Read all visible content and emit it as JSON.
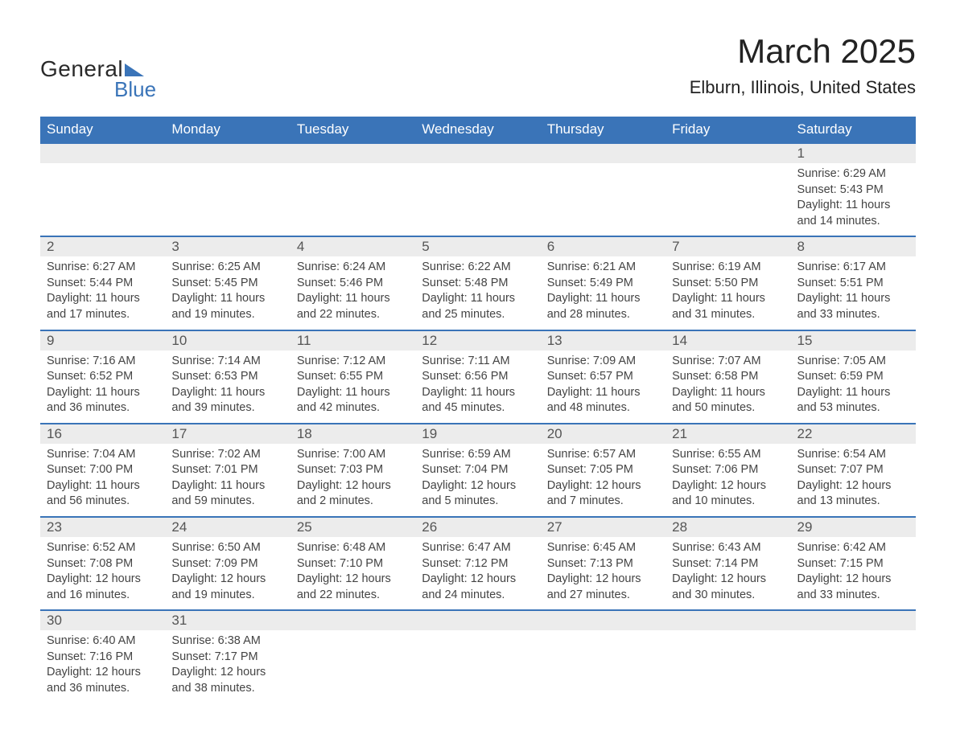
{
  "logo": {
    "text_general": "General",
    "text_blue": "Blue",
    "triangle_color": "#3a74b8"
  },
  "title": "March 2025",
  "location": "Elburn, Illinois, United States",
  "colors": {
    "header_bg": "#3a74b8",
    "header_text": "#ffffff",
    "daynum_bg": "#ececec",
    "border": "#3a74b8",
    "body_text": "#444444"
  },
  "weekdays": [
    "Sunday",
    "Monday",
    "Tuesday",
    "Wednesday",
    "Thursday",
    "Friday",
    "Saturday"
  ],
  "weeks": [
    [
      {
        "empty": true
      },
      {
        "empty": true
      },
      {
        "empty": true
      },
      {
        "empty": true
      },
      {
        "empty": true
      },
      {
        "empty": true
      },
      {
        "day": "1",
        "sunrise": "Sunrise: 6:29 AM",
        "sunset": "Sunset: 5:43 PM",
        "daylight1": "Daylight: 11 hours",
        "daylight2": "and 14 minutes."
      }
    ],
    [
      {
        "day": "2",
        "sunrise": "Sunrise: 6:27 AM",
        "sunset": "Sunset: 5:44 PM",
        "daylight1": "Daylight: 11 hours",
        "daylight2": "and 17 minutes."
      },
      {
        "day": "3",
        "sunrise": "Sunrise: 6:25 AM",
        "sunset": "Sunset: 5:45 PM",
        "daylight1": "Daylight: 11 hours",
        "daylight2": "and 19 minutes."
      },
      {
        "day": "4",
        "sunrise": "Sunrise: 6:24 AM",
        "sunset": "Sunset: 5:46 PM",
        "daylight1": "Daylight: 11 hours",
        "daylight2": "and 22 minutes."
      },
      {
        "day": "5",
        "sunrise": "Sunrise: 6:22 AM",
        "sunset": "Sunset: 5:48 PM",
        "daylight1": "Daylight: 11 hours",
        "daylight2": "and 25 minutes."
      },
      {
        "day": "6",
        "sunrise": "Sunrise: 6:21 AM",
        "sunset": "Sunset: 5:49 PM",
        "daylight1": "Daylight: 11 hours",
        "daylight2": "and 28 minutes."
      },
      {
        "day": "7",
        "sunrise": "Sunrise: 6:19 AM",
        "sunset": "Sunset: 5:50 PM",
        "daylight1": "Daylight: 11 hours",
        "daylight2": "and 31 minutes."
      },
      {
        "day": "8",
        "sunrise": "Sunrise: 6:17 AM",
        "sunset": "Sunset: 5:51 PM",
        "daylight1": "Daylight: 11 hours",
        "daylight2": "and 33 minutes."
      }
    ],
    [
      {
        "day": "9",
        "sunrise": "Sunrise: 7:16 AM",
        "sunset": "Sunset: 6:52 PM",
        "daylight1": "Daylight: 11 hours",
        "daylight2": "and 36 minutes."
      },
      {
        "day": "10",
        "sunrise": "Sunrise: 7:14 AM",
        "sunset": "Sunset: 6:53 PM",
        "daylight1": "Daylight: 11 hours",
        "daylight2": "and 39 minutes."
      },
      {
        "day": "11",
        "sunrise": "Sunrise: 7:12 AM",
        "sunset": "Sunset: 6:55 PM",
        "daylight1": "Daylight: 11 hours",
        "daylight2": "and 42 minutes."
      },
      {
        "day": "12",
        "sunrise": "Sunrise: 7:11 AM",
        "sunset": "Sunset: 6:56 PM",
        "daylight1": "Daylight: 11 hours",
        "daylight2": "and 45 minutes."
      },
      {
        "day": "13",
        "sunrise": "Sunrise: 7:09 AM",
        "sunset": "Sunset: 6:57 PM",
        "daylight1": "Daylight: 11 hours",
        "daylight2": "and 48 minutes."
      },
      {
        "day": "14",
        "sunrise": "Sunrise: 7:07 AM",
        "sunset": "Sunset: 6:58 PM",
        "daylight1": "Daylight: 11 hours",
        "daylight2": "and 50 minutes."
      },
      {
        "day": "15",
        "sunrise": "Sunrise: 7:05 AM",
        "sunset": "Sunset: 6:59 PM",
        "daylight1": "Daylight: 11 hours",
        "daylight2": "and 53 minutes."
      }
    ],
    [
      {
        "day": "16",
        "sunrise": "Sunrise: 7:04 AM",
        "sunset": "Sunset: 7:00 PM",
        "daylight1": "Daylight: 11 hours",
        "daylight2": "and 56 minutes."
      },
      {
        "day": "17",
        "sunrise": "Sunrise: 7:02 AM",
        "sunset": "Sunset: 7:01 PM",
        "daylight1": "Daylight: 11 hours",
        "daylight2": "and 59 minutes."
      },
      {
        "day": "18",
        "sunrise": "Sunrise: 7:00 AM",
        "sunset": "Sunset: 7:03 PM",
        "daylight1": "Daylight: 12 hours",
        "daylight2": "and 2 minutes."
      },
      {
        "day": "19",
        "sunrise": "Sunrise: 6:59 AM",
        "sunset": "Sunset: 7:04 PM",
        "daylight1": "Daylight: 12 hours",
        "daylight2": "and 5 minutes."
      },
      {
        "day": "20",
        "sunrise": "Sunrise: 6:57 AM",
        "sunset": "Sunset: 7:05 PM",
        "daylight1": "Daylight: 12 hours",
        "daylight2": "and 7 minutes."
      },
      {
        "day": "21",
        "sunrise": "Sunrise: 6:55 AM",
        "sunset": "Sunset: 7:06 PM",
        "daylight1": "Daylight: 12 hours",
        "daylight2": "and 10 minutes."
      },
      {
        "day": "22",
        "sunrise": "Sunrise: 6:54 AM",
        "sunset": "Sunset: 7:07 PM",
        "daylight1": "Daylight: 12 hours",
        "daylight2": "and 13 minutes."
      }
    ],
    [
      {
        "day": "23",
        "sunrise": "Sunrise: 6:52 AM",
        "sunset": "Sunset: 7:08 PM",
        "daylight1": "Daylight: 12 hours",
        "daylight2": "and 16 minutes."
      },
      {
        "day": "24",
        "sunrise": "Sunrise: 6:50 AM",
        "sunset": "Sunset: 7:09 PM",
        "daylight1": "Daylight: 12 hours",
        "daylight2": "and 19 minutes."
      },
      {
        "day": "25",
        "sunrise": "Sunrise: 6:48 AM",
        "sunset": "Sunset: 7:10 PM",
        "daylight1": "Daylight: 12 hours",
        "daylight2": "and 22 minutes."
      },
      {
        "day": "26",
        "sunrise": "Sunrise: 6:47 AM",
        "sunset": "Sunset: 7:12 PM",
        "daylight1": "Daylight: 12 hours",
        "daylight2": "and 24 minutes."
      },
      {
        "day": "27",
        "sunrise": "Sunrise: 6:45 AM",
        "sunset": "Sunset: 7:13 PM",
        "daylight1": "Daylight: 12 hours",
        "daylight2": "and 27 minutes."
      },
      {
        "day": "28",
        "sunrise": "Sunrise: 6:43 AM",
        "sunset": "Sunset: 7:14 PM",
        "daylight1": "Daylight: 12 hours",
        "daylight2": "and 30 minutes."
      },
      {
        "day": "29",
        "sunrise": "Sunrise: 6:42 AM",
        "sunset": "Sunset: 7:15 PM",
        "daylight1": "Daylight: 12 hours",
        "daylight2": "and 33 minutes."
      }
    ],
    [
      {
        "day": "30",
        "sunrise": "Sunrise: 6:40 AM",
        "sunset": "Sunset: 7:16 PM",
        "daylight1": "Daylight: 12 hours",
        "daylight2": "and 36 minutes."
      },
      {
        "day": "31",
        "sunrise": "Sunrise: 6:38 AM",
        "sunset": "Sunset: 7:17 PM",
        "daylight1": "Daylight: 12 hours",
        "daylight2": "and 38 minutes."
      },
      {
        "empty": true
      },
      {
        "empty": true
      },
      {
        "empty": true
      },
      {
        "empty": true
      },
      {
        "empty": true
      }
    ]
  ]
}
